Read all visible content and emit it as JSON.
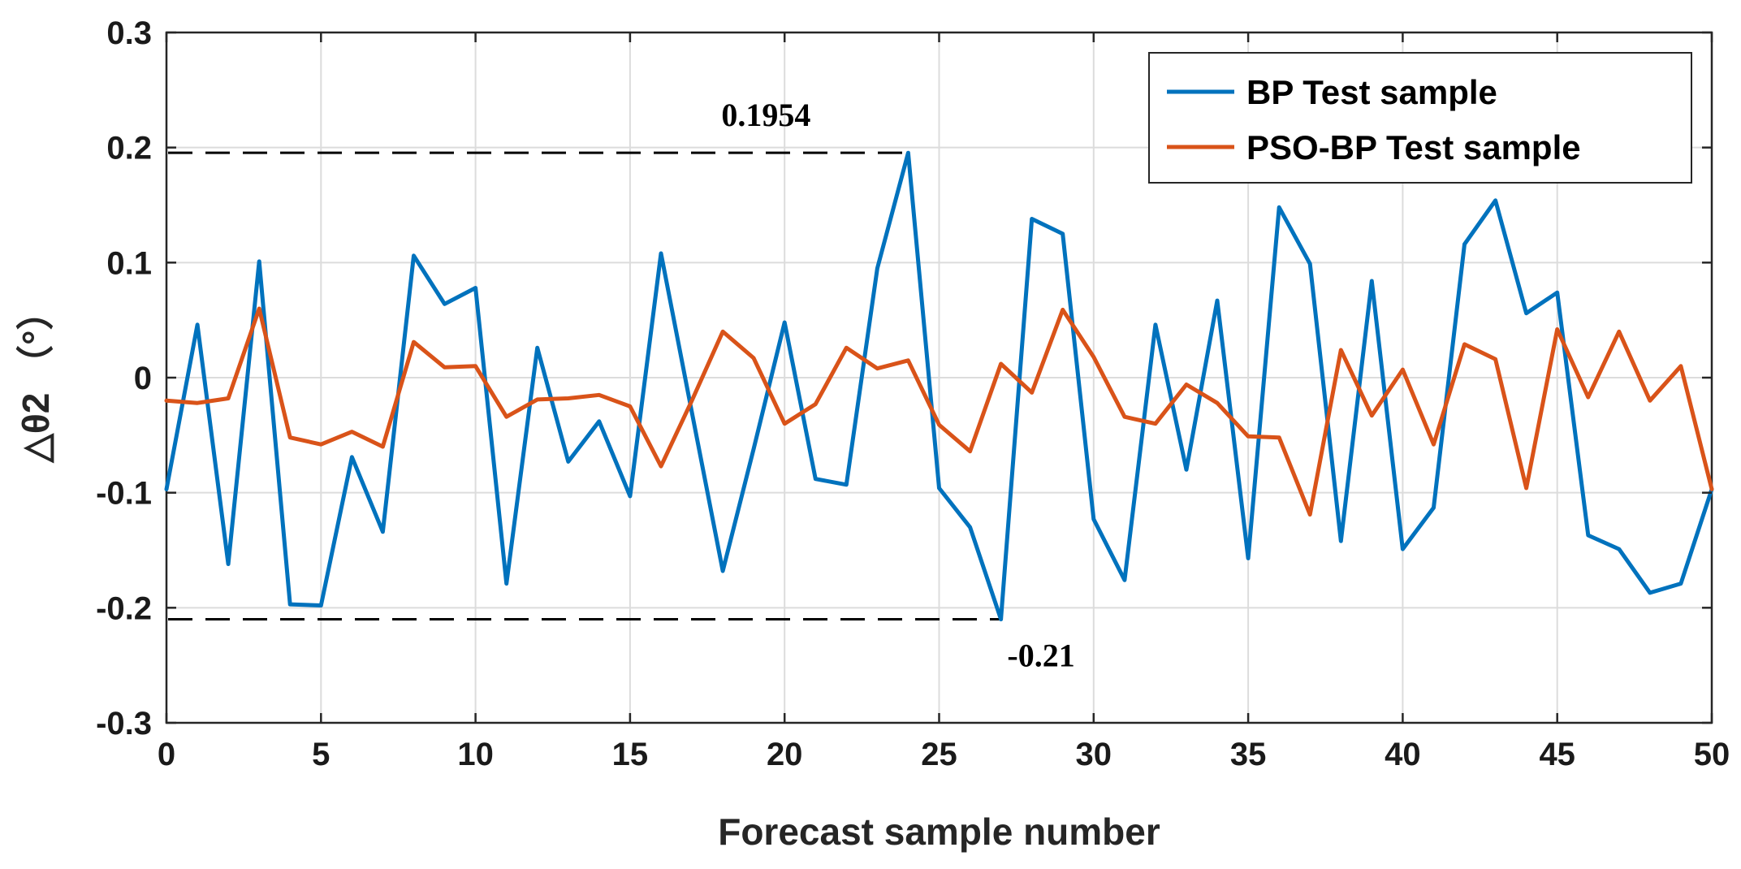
{
  "chart_data": {
    "type": "line",
    "title": "",
    "xlabel": "Forecast sample number",
    "ylabel": "△θ2 （°）",
    "xlim": [
      0,
      50
    ],
    "ylim": [
      -0.3,
      0.3
    ],
    "xticks": [
      0,
      5,
      10,
      15,
      20,
      25,
      30,
      35,
      40,
      45,
      50
    ],
    "yticks": [
      -0.3,
      -0.2,
      -0.1,
      0,
      0.1,
      0.2,
      0.3
    ],
    "ytick_labels": [
      "-0.3",
      "-0.2",
      "-0.1",
      "0",
      "0.1",
      "0.2",
      "0.3"
    ],
    "grid": true,
    "legend_position": "top-right",
    "series": [
      {
        "name": "BP Test sample",
        "color": "#0072bd",
        "x": [
          0,
          1,
          2,
          3,
          4,
          5,
          6,
          7,
          8,
          9,
          10,
          11,
          12,
          13,
          14,
          15,
          16,
          17,
          18,
          19,
          20,
          21,
          22,
          23,
          24,
          25,
          26,
          27,
          28,
          29,
          30,
          31,
          32,
          33,
          34,
          35,
          36,
          37,
          38,
          39,
          40,
          41,
          42,
          43,
          44,
          45,
          46,
          47,
          48,
          49,
          50
        ],
        "values": [
          -0.097,
          0.046,
          -0.162,
          0.101,
          -0.197,
          -0.198,
          -0.069,
          -0.134,
          0.106,
          0.064,
          0.078,
          -0.179,
          0.026,
          -0.073,
          -0.038,
          -0.103,
          0.108,
          -0.03,
          -0.168,
          -0.062,
          0.048,
          -0.088,
          -0.093,
          0.095,
          0.1954,
          -0.096,
          -0.13,
          -0.21,
          0.138,
          0.125,
          -0.123,
          -0.176,
          0.046,
          -0.08,
          0.067,
          -0.157,
          0.148,
          0.099,
          -0.142,
          0.084,
          -0.149,
          -0.113,
          0.116,
          0.154,
          0.056,
          0.074,
          -0.137,
          -0.149,
          -0.187,
          -0.179,
          -0.097
        ]
      },
      {
        "name": "PSO-BP Test sample",
        "color": "#d95319",
        "x": [
          0,
          1,
          2,
          3,
          4,
          5,
          6,
          7,
          8,
          9,
          10,
          11,
          12,
          13,
          14,
          15,
          16,
          17,
          18,
          19,
          20,
          21,
          22,
          23,
          24,
          25,
          26,
          27,
          28,
          29,
          30,
          31,
          32,
          33,
          34,
          35,
          36,
          37,
          38,
          39,
          40,
          41,
          42,
          43,
          44,
          45,
          46,
          47,
          48,
          49,
          50
        ],
        "values": [
          -0.02,
          -0.022,
          -0.018,
          0.06,
          -0.052,
          -0.058,
          -0.047,
          -0.06,
          0.031,
          0.009,
          0.01,
          -0.034,
          -0.019,
          -0.018,
          -0.015,
          -0.025,
          -0.077,
          -0.02,
          0.04,
          0.017,
          -0.04,
          -0.023,
          0.026,
          0.008,
          0.015,
          -0.041,
          -0.064,
          0.012,
          -0.013,
          0.059,
          0.018,
          -0.034,
          -0.04,
          -0.006,
          -0.022,
          -0.051,
          -0.052,
          -0.119,
          0.024,
          -0.033,
          0.007,
          -0.058,
          0.029,
          0.016,
          -0.096,
          0.042,
          -0.017,
          0.04,
          -0.02,
          0.01,
          -0.097
        ]
      }
    ],
    "annotations": [
      {
        "label": "0.1954",
        "value": 0.1954,
        "x_end": 24
      },
      {
        "label": "-0.21",
        "value": -0.21,
        "x_end": 27
      }
    ]
  }
}
